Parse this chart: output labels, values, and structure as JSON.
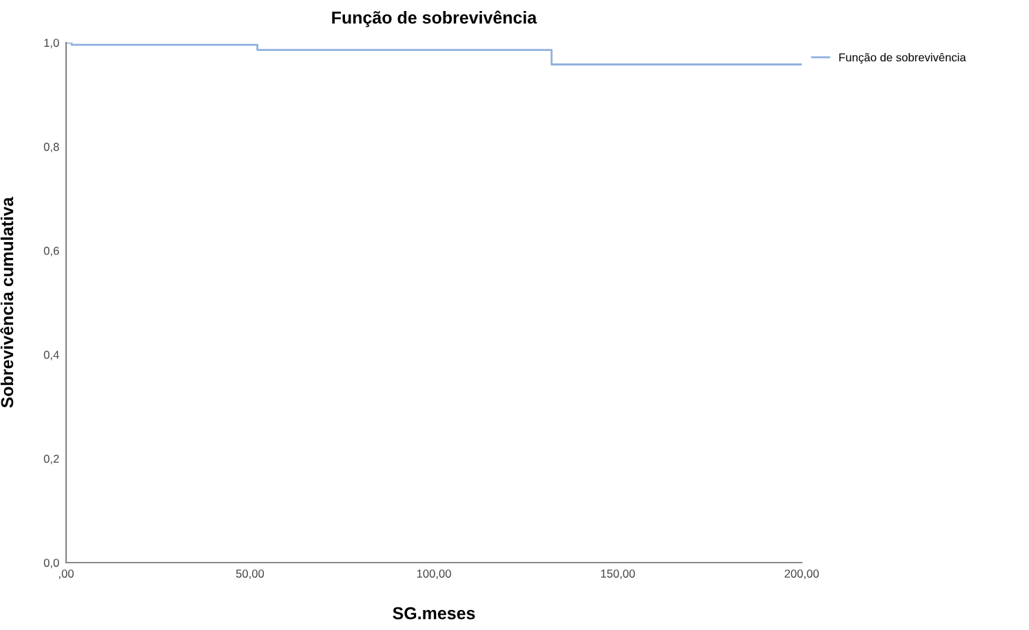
{
  "chart_data": {
    "type": "step",
    "title": "Função de sobrevivência",
    "xlabel": "SG.meses",
    "ylabel": "Sobrevivência cumulativa",
    "x": [
      0,
      1.5,
      52,
      132,
      200
    ],
    "series": [
      {
        "name": "Função de sobrevivência",
        "color": "#8fb0e0",
        "values": [
          1.0,
          0.996,
          0.986,
          0.958,
          0.958
        ]
      }
    ],
    "xlim": [
      0,
      200
    ],
    "ylim": [
      0,
      1.0
    ],
    "xticks": [
      {
        "value": 0,
        "label": ",00"
      },
      {
        "value": 50,
        "label": "50,00"
      },
      {
        "value": 100,
        "label": "100,00"
      },
      {
        "value": 150,
        "label": "150,00"
      },
      {
        "value": 200,
        "label": "200,00"
      }
    ],
    "yticks": [
      {
        "value": 0,
        "label": "0,0"
      },
      {
        "value": 0.2,
        "label": "0,2"
      },
      {
        "value": 0.4,
        "label": "0,4"
      },
      {
        "value": 0.6,
        "label": "0,6"
      },
      {
        "value": 0.8,
        "label": "0,8"
      },
      {
        "value": 1.0,
        "label": "1,0"
      }
    ],
    "legend": "top right",
    "grid": false
  }
}
